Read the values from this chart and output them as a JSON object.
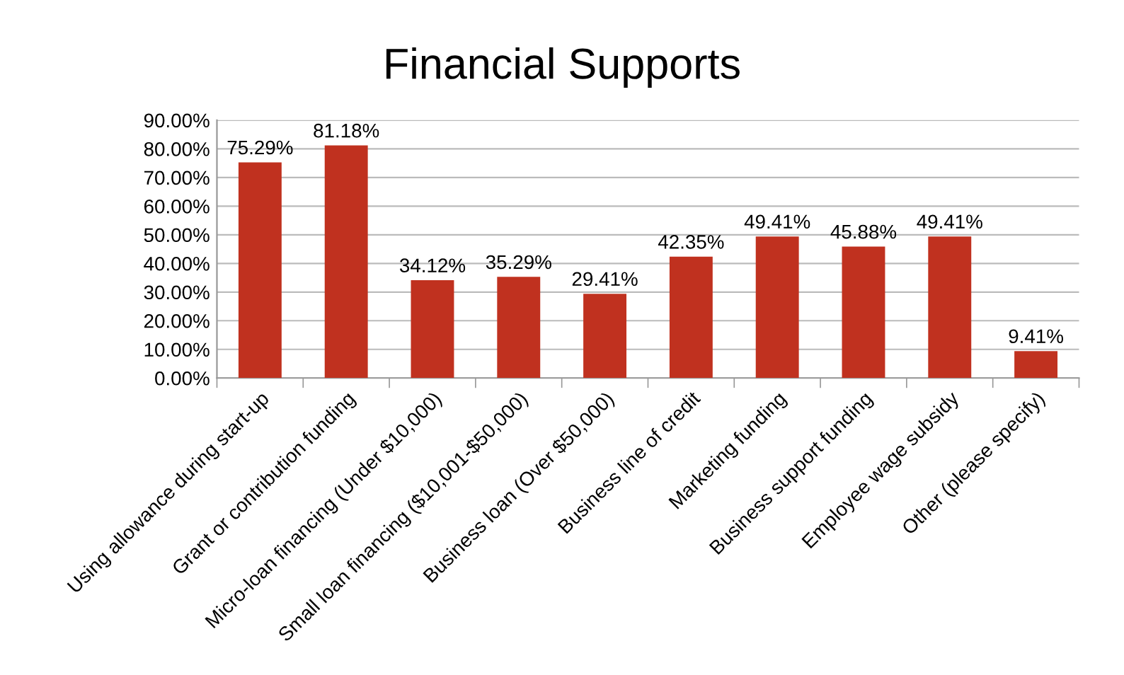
{
  "chart_data": {
    "type": "bar",
    "title": "Financial Supports",
    "categories": [
      "Using allowance during start-up",
      "Grant or contribution funding",
      "Micro-loan financing (Under $10,000)",
      "Small loan financing ($10,001-$50,000)",
      "Business loan (Over $50,000)",
      "Business line of credit",
      "Marketing funding",
      "Business support funding",
      "Employee wage subsidy",
      "Other (please specify)"
    ],
    "values": [
      75.29,
      81.18,
      34.12,
      35.29,
      29.41,
      42.35,
      49.41,
      45.88,
      49.41,
      9.41
    ],
    "value_labels": [
      "75.29%",
      "81.18%",
      "34.12%",
      "35.29%",
      "29.41%",
      "42.35%",
      "49.41%",
      "45.88%",
      "49.41%",
      "9.41%"
    ],
    "color": "#c0311f",
    "ylim": [
      0,
      90
    ],
    "yticks": [
      {
        "value": 0,
        "label": "0.00%"
      },
      {
        "value": 10,
        "label": "10.00%"
      },
      {
        "value": 20,
        "label": "20.00%"
      },
      {
        "value": 30,
        "label": "30.00%"
      },
      {
        "value": 40,
        "label": "40.00%"
      },
      {
        "value": 50,
        "label": "50.00%"
      },
      {
        "value": 60,
        "label": "60.00%"
      },
      {
        "value": 70,
        "label": "70.00%"
      },
      {
        "value": 80,
        "label": "80.00%"
      },
      {
        "value": 90,
        "label": "90.00%"
      }
    ],
    "grid": "y",
    "legend": false
  }
}
